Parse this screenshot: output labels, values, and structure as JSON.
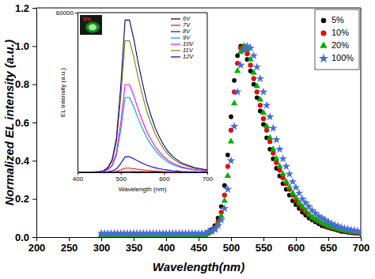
{
  "chart_data": [
    {
      "type": "scatter",
      "x_label": "Wavelength(nm)",
      "y_label": "Normalized EL intensity (a.u.)",
      "xlim": [
        200,
        700
      ],
      "xticks": [
        200,
        250,
        300,
        350,
        400,
        450,
        500,
        550,
        600,
        650,
        700
      ],
      "ylim": [
        0,
        1.2
      ],
      "yticks": [
        {
          "value": 0,
          "label": "0.0"
        },
        0.2,
        0.4,
        0.6,
        0.8,
        {
          "value": 1,
          "label": "1.0"
        },
        1.2
      ],
      "grid": false,
      "legend": "top-right",
      "x": [
        300,
        305,
        310,
        315,
        320,
        325,
        330,
        335,
        340,
        345,
        350,
        355,
        360,
        365,
        370,
        375,
        380,
        385,
        390,
        395,
        400,
        405,
        410,
        415,
        420,
        425,
        430,
        435,
        440,
        445,
        450,
        455,
        460,
        465,
        470,
        475,
        480,
        485,
        490,
        495,
        500,
        505,
        510,
        515,
        520,
        525,
        530,
        535,
        540,
        545,
        550,
        555,
        560,
        565,
        570,
        575,
        580,
        585,
        590,
        595,
        600,
        605,
        610,
        615,
        620,
        625,
        630,
        635,
        640,
        645,
        650,
        655,
        660,
        665,
        670,
        675,
        680,
        685,
        690,
        695,
        700
      ],
      "series": [
        {
          "name": "5%",
          "color": "#000000",
          "marker": "circle",
          "values": [
            0.01,
            0.01,
            0.01,
            0.01,
            0.01,
            0.01,
            0.01,
            0.01,
            0.01,
            0.01,
            0.01,
            0.01,
            0.01,
            0.01,
            0.01,
            0.01,
            0.01,
            0.01,
            0.01,
            0.01,
            0.01,
            0.01,
            0.01,
            0.01,
            0.01,
            0.01,
            0.01,
            0.01,
            0.01,
            0.01,
            0.01,
            0.01,
            0.01,
            0.02,
            0.04,
            0.06,
            0.1,
            0.16,
            0.27,
            0.43,
            0.63,
            0.82,
            0.95,
            1.0,
            0.98,
            0.93,
            0.87,
            0.8,
            0.73,
            0.66,
            0.59,
            0.52,
            0.46,
            0.41,
            0.36,
            0.32,
            0.28,
            0.25,
            0.22,
            0.19,
            0.17,
            0.15,
            0.13,
            0.115,
            0.1,
            0.09,
            0.08,
            0.07,
            0.06,
            0.055,
            0.05,
            0.045,
            0.04,
            0.035,
            0.03,
            0.028,
            0.025,
            0.023,
            0.021,
            0.02,
            0.018
          ]
        },
        {
          "name": "10%",
          "color": "#ff0000",
          "marker": "circle",
          "values": [
            0.01,
            0.01,
            0.01,
            0.01,
            0.01,
            0.01,
            0.01,
            0.01,
            0.01,
            0.01,
            0.01,
            0.01,
            0.01,
            0.01,
            0.01,
            0.01,
            0.01,
            0.01,
            0.01,
            0.01,
            0.01,
            0.01,
            0.01,
            0.01,
            0.01,
            0.01,
            0.01,
            0.01,
            0.01,
            0.01,
            0.01,
            0.01,
            0.01,
            0.02,
            0.03,
            0.05,
            0.08,
            0.13,
            0.22,
            0.37,
            0.56,
            0.76,
            0.91,
            0.99,
            1.0,
            0.96,
            0.9,
            0.83,
            0.76,
            0.69,
            0.62,
            0.56,
            0.5,
            0.44,
            0.39,
            0.35,
            0.31,
            0.28,
            0.25,
            0.22,
            0.195,
            0.17,
            0.15,
            0.13,
            0.115,
            0.1,
            0.09,
            0.08,
            0.07,
            0.062,
            0.055,
            0.05,
            0.045,
            0.04,
            0.036,
            0.032,
            0.029,
            0.026,
            0.024,
            0.022,
            0.02
          ]
        },
        {
          "name": "20%",
          "color": "#00b000",
          "marker": "triangle",
          "values": [
            0.01,
            0.01,
            0.01,
            0.01,
            0.01,
            0.01,
            0.01,
            0.01,
            0.01,
            0.01,
            0.01,
            0.01,
            0.01,
            0.01,
            0.01,
            0.01,
            0.01,
            0.01,
            0.01,
            0.01,
            0.01,
            0.01,
            0.01,
            0.01,
            0.01,
            0.01,
            0.01,
            0.01,
            0.01,
            0.01,
            0.01,
            0.01,
            0.01,
            0.02,
            0.03,
            0.04,
            0.07,
            0.11,
            0.19,
            0.32,
            0.5,
            0.7,
            0.87,
            0.97,
            1.0,
            0.98,
            0.93,
            0.86,
            0.79,
            0.72,
            0.65,
            0.58,
            0.52,
            0.46,
            0.41,
            0.37,
            0.33,
            0.29,
            0.26,
            0.23,
            0.205,
            0.18,
            0.16,
            0.14,
            0.12,
            0.105,
            0.095,
            0.085,
            0.075,
            0.067,
            0.06,
            0.053,
            0.048,
            0.043,
            0.039,
            0.035,
            0.031,
            0.028,
            0.026,
            0.024,
            0.022
          ]
        },
        {
          "name": "100%",
          "color": "#4a6cd4",
          "marker": "star",
          "values": [
            0.02,
            0.02,
            0.02,
            0.02,
            0.02,
            0.02,
            0.02,
            0.02,
            0.02,
            0.02,
            0.02,
            0.02,
            0.02,
            0.02,
            0.02,
            0.02,
            0.02,
            0.02,
            0.02,
            0.02,
            0.02,
            0.02,
            0.02,
            0.02,
            0.02,
            0.02,
            0.02,
            0.02,
            0.02,
            0.02,
            0.02,
            0.02,
            0.02,
            0.03,
            0.03,
            0.04,
            0.06,
            0.09,
            0.15,
            0.25,
            0.4,
            0.58,
            0.76,
            0.9,
            0.98,
            1.0,
            0.99,
            0.95,
            0.89,
            0.83,
            0.76,
            0.69,
            0.63,
            0.57,
            0.51,
            0.46,
            0.41,
            0.37,
            0.33,
            0.29,
            0.26,
            0.23,
            0.2,
            0.18,
            0.16,
            0.14,
            0.125,
            0.11,
            0.1,
            0.09,
            0.08,
            0.07,
            0.063,
            0.057,
            0.051,
            0.046,
            0.042,
            0.038,
            0.035,
            0.032,
            0.03
          ]
        }
      ]
    },
    {
      "type": "line",
      "x_label": "Wavelength (nm)",
      "y_label": "EL Intensity (a.u.)",
      "annotations": [
        "5%"
      ],
      "xlim": [
        400,
        700
      ],
      "xticks": [
        400,
        500,
        600,
        700
      ],
      "ylim": [
        0,
        60000
      ],
      "yticks": [
        60000
      ],
      "grid": false,
      "legend": "top-right",
      "line_style": "solid",
      "x": [
        400,
        410,
        420,
        430,
        440,
        450,
        460,
        470,
        480,
        490,
        500,
        510,
        520,
        530,
        540,
        550,
        560,
        570,
        580,
        590,
        600,
        610,
        620,
        630,
        640,
        650,
        660,
        670,
        680,
        690,
        700
      ],
      "series": [
        {
          "name": "6V",
          "color": "#000000",
          "values": [
            0,
            0,
            0,
            0,
            1,
            2,
            3,
            9,
            24,
            66,
            165,
            291,
            291,
            255,
            210,
            171,
            135,
            108,
            84,
            66,
            51,
            39,
            30,
            24,
            18,
            15,
            12,
            9,
            8,
            6,
            5
          ]
        },
        {
          "name": "7V",
          "color": "#ff0000",
          "values": [
            0,
            0,
            0,
            0,
            3,
            8,
            16,
            48,
            128,
            352,
            880,
            1552,
            1552,
            1360,
            1120,
            912,
            720,
            576,
            448,
            352,
            272,
            208,
            160,
            128,
            96,
            80,
            64,
            48,
            40,
            32,
            24
          ]
        },
        {
          "name": "8V",
          "color": "#0000ff",
          "values": [
            0,
            0,
            0,
            0,
            12,
            30,
            60,
            180,
            480,
            1320,
            3300,
            5820,
            5820,
            5100,
            4200,
            3420,
            2700,
            2160,
            1680,
            1320,
            1020,
            780,
            600,
            480,
            360,
            300,
            240,
            180,
            150,
            120,
            90
          ]
        },
        {
          "name": "9V",
          "color": "#00a0c0",
          "values": [
            0,
            0,
            0,
            0,
            58,
            145,
            290,
            870,
            2320,
            6380,
            15950,
            28130,
            28130,
            24650,
            20300,
            16530,
            13050,
            10440,
            8120,
            6380,
            4930,
            3770,
            2900,
            2320,
            1740,
            1450,
            1160,
            870,
            725,
            580,
            435
          ]
        },
        {
          "name": "10V",
          "color": "#ff00ff",
          "values": [
            0,
            0,
            0,
            0,
            68,
            170,
            340,
            1020,
            2720,
            7480,
            18700,
            32980,
            32980,
            28900,
            23800,
            19380,
            15300,
            12240,
            9520,
            7480,
            5780,
            4420,
            3400,
            2720,
            2040,
            1700,
            1360,
            1020,
            850,
            680,
            510
          ]
        },
        {
          "name": "11V",
          "color": "#808000",
          "values": [
            0,
            0,
            0,
            0,
            102,
            255,
            510,
            1530,
            4080,
            11220,
            28050,
            49470,
            49470,
            43350,
            35700,
            29070,
            22950,
            18360,
            14280,
            11220,
            8670,
            6630,
            5100,
            4080,
            3060,
            2550,
            2040,
            1530,
            1275,
            1020,
            765
          ]
        },
        {
          "name": "12V",
          "color": "#000080",
          "values": [
            0,
            0,
            0,
            0,
            118,
            295,
            590,
            1770,
            4720,
            12980,
            32450,
            57230,
            57230,
            50150,
            41300,
            33630,
            26550,
            21240,
            16520,
            12980,
            10030,
            7670,
            5900,
            4720,
            3540,
            2950,
            2360,
            1770,
            1475,
            1180,
            885
          ]
        }
      ]
    }
  ]
}
